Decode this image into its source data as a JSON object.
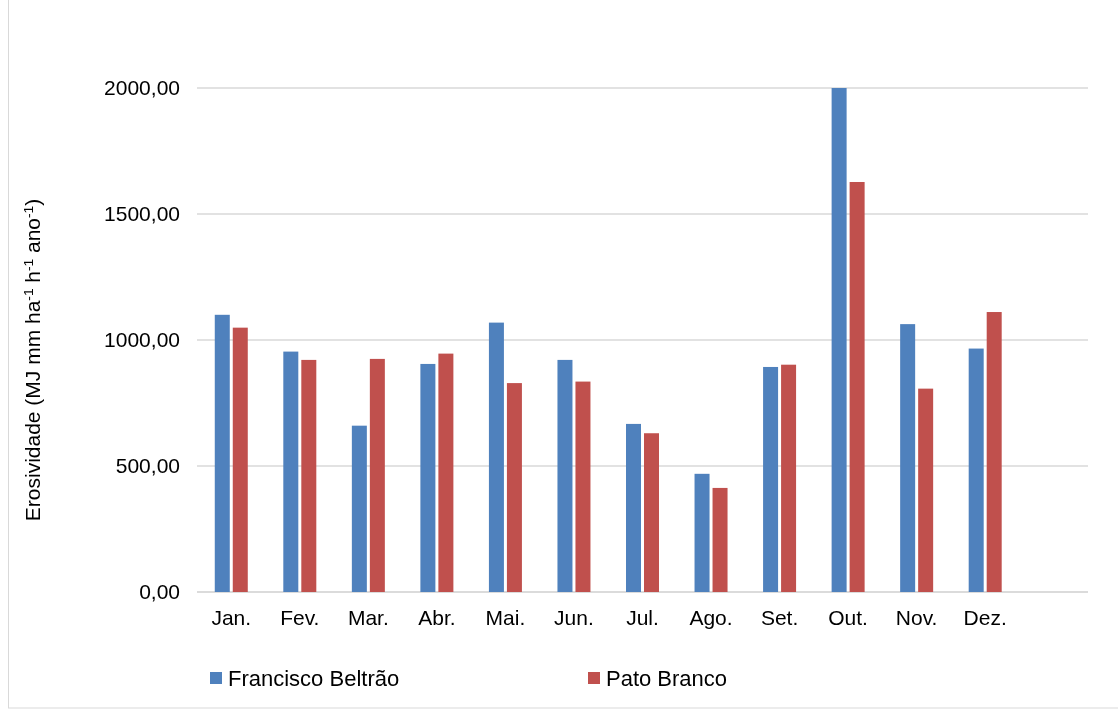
{
  "chart_data": {
    "type": "bar",
    "ylabel": "Erosividade (MJ mm ha$^{-1}$ h$^{-1}$ ano$^{-1}$)",
    "categories": [
      "Jan.",
      "Fev.",
      "Mar.",
      "Abr.",
      "Mai.",
      "Jun.",
      "Jul.",
      "Ago.",
      "Set.",
      "Out.",
      "Nov.",
      "Dez.",
      null
    ],
    "series": [
      {
        "name": "Francisco Beltrão",
        "color": "#4f81bd",
        "values": [
          1100,
          954,
          660,
          905,
          1069,
          921,
          667,
          469,
          893,
          2000,
          1063,
          966,
          null
        ]
      },
      {
        "name": "Pato Branco",
        "color": "#c0504d",
        "values": [
          1049,
          921,
          925,
          946,
          829,
          835,
          630,
          413,
          902,
          1627,
          807,
          1111,
          null
        ]
      }
    ],
    "ylim": [
      0,
      2000
    ],
    "yticks": [
      {
        "value": 0,
        "label": "0,00"
      },
      {
        "value": 500,
        "label": "500,00"
      },
      {
        "value": 1000,
        "label": "1000,00"
      },
      {
        "value": 1500,
        "label": "1500,00"
      },
      {
        "value": 2000,
        "label": "2000,00"
      }
    ],
    "grid": "y",
    "legend": "bottom"
  }
}
